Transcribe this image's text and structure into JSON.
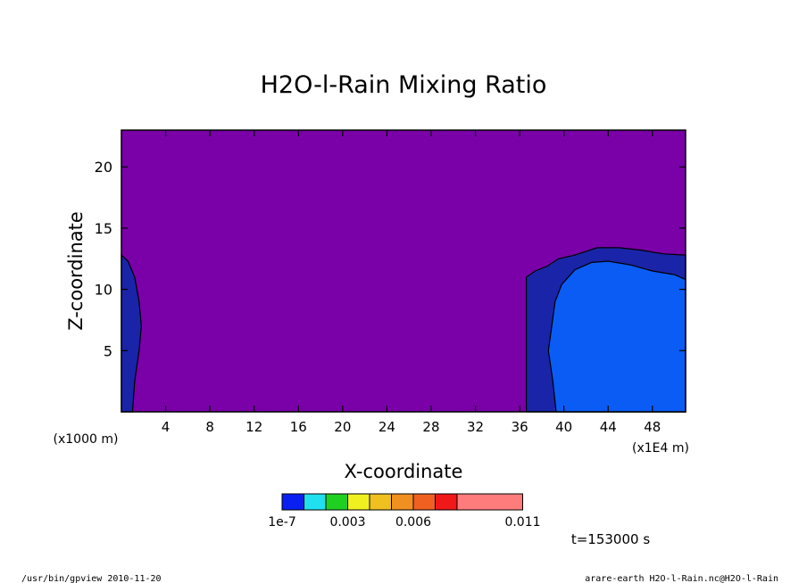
{
  "chart_data": {
    "type": "heatmap",
    "title": "H2O-l-Rain Mixing Ratio",
    "xlabel": "X-coordinate",
    "ylabel": "Z-coordinate",
    "x_unit_label": "(x1E4 m)",
    "y_unit_label": "(x1000 m)",
    "xlim": [
      0,
      51
    ],
    "ylim": [
      0,
      23
    ],
    "x_ticks": [
      4,
      8,
      12,
      16,
      20,
      24,
      28,
      32,
      36,
      40,
      44,
      48
    ],
    "y_ticks": [
      5,
      10,
      15,
      20
    ],
    "background_level_color": "#7a00a8",
    "regions": [
      {
        "name": "left-edge",
        "color": "#1a24a8",
        "outline": [
          [
            0,
            0
          ],
          [
            0,
            12.8
          ],
          [
            0.6,
            12.3
          ],
          [
            1.2,
            11.0
          ],
          [
            1.6,
            9.0
          ],
          [
            1.8,
            7.0
          ],
          [
            1.6,
            5.0
          ],
          [
            1.2,
            2.5
          ],
          [
            1.0,
            0
          ]
        ]
      },
      {
        "name": "right-outer",
        "color": "#1a24a8",
        "outline": [
          [
            36.6,
            0
          ],
          [
            36.6,
            11.0
          ],
          [
            37.4,
            11.5
          ],
          [
            38.5,
            11.9
          ],
          [
            39.5,
            12.5
          ],
          [
            41.0,
            12.8
          ],
          [
            43.0,
            13.4
          ],
          [
            45.0,
            13.4
          ],
          [
            47.0,
            13.2
          ],
          [
            49.0,
            12.9
          ],
          [
            51,
            12.8
          ],
          [
            51,
            0
          ]
        ]
      },
      {
        "name": "right-inner",
        "color": "#0a5cf5",
        "outline": [
          [
            39.3,
            0
          ],
          [
            39.0,
            2.5
          ],
          [
            38.6,
            5.0
          ],
          [
            38.9,
            7.0
          ],
          [
            39.2,
            9.0
          ],
          [
            39.8,
            10.4
          ],
          [
            41.0,
            11.6
          ],
          [
            42.5,
            12.2
          ],
          [
            44.0,
            12.3
          ],
          [
            46.0,
            12.0
          ],
          [
            48.0,
            11.5
          ],
          [
            50.0,
            11.2
          ],
          [
            51,
            10.8
          ],
          [
            51,
            0
          ]
        ]
      }
    ],
    "colorbar": {
      "colors": [
        "#0a20f0",
        "#20e0f0",
        "#20d020",
        "#f0f020",
        "#f0c020",
        "#f09020",
        "#f06020",
        "#f01818",
        "#ff7c7c"
      ],
      "labels": [
        "1e-7",
        "0.003",
        "0.006",
        "0.011"
      ]
    },
    "time_label": "t=153000 s"
  },
  "footer": {
    "left": "/usr/bin/gpview  2010-11-20",
    "right": "arare-earth_H2O-l-Rain.nc@H2O-l-Rain"
  }
}
